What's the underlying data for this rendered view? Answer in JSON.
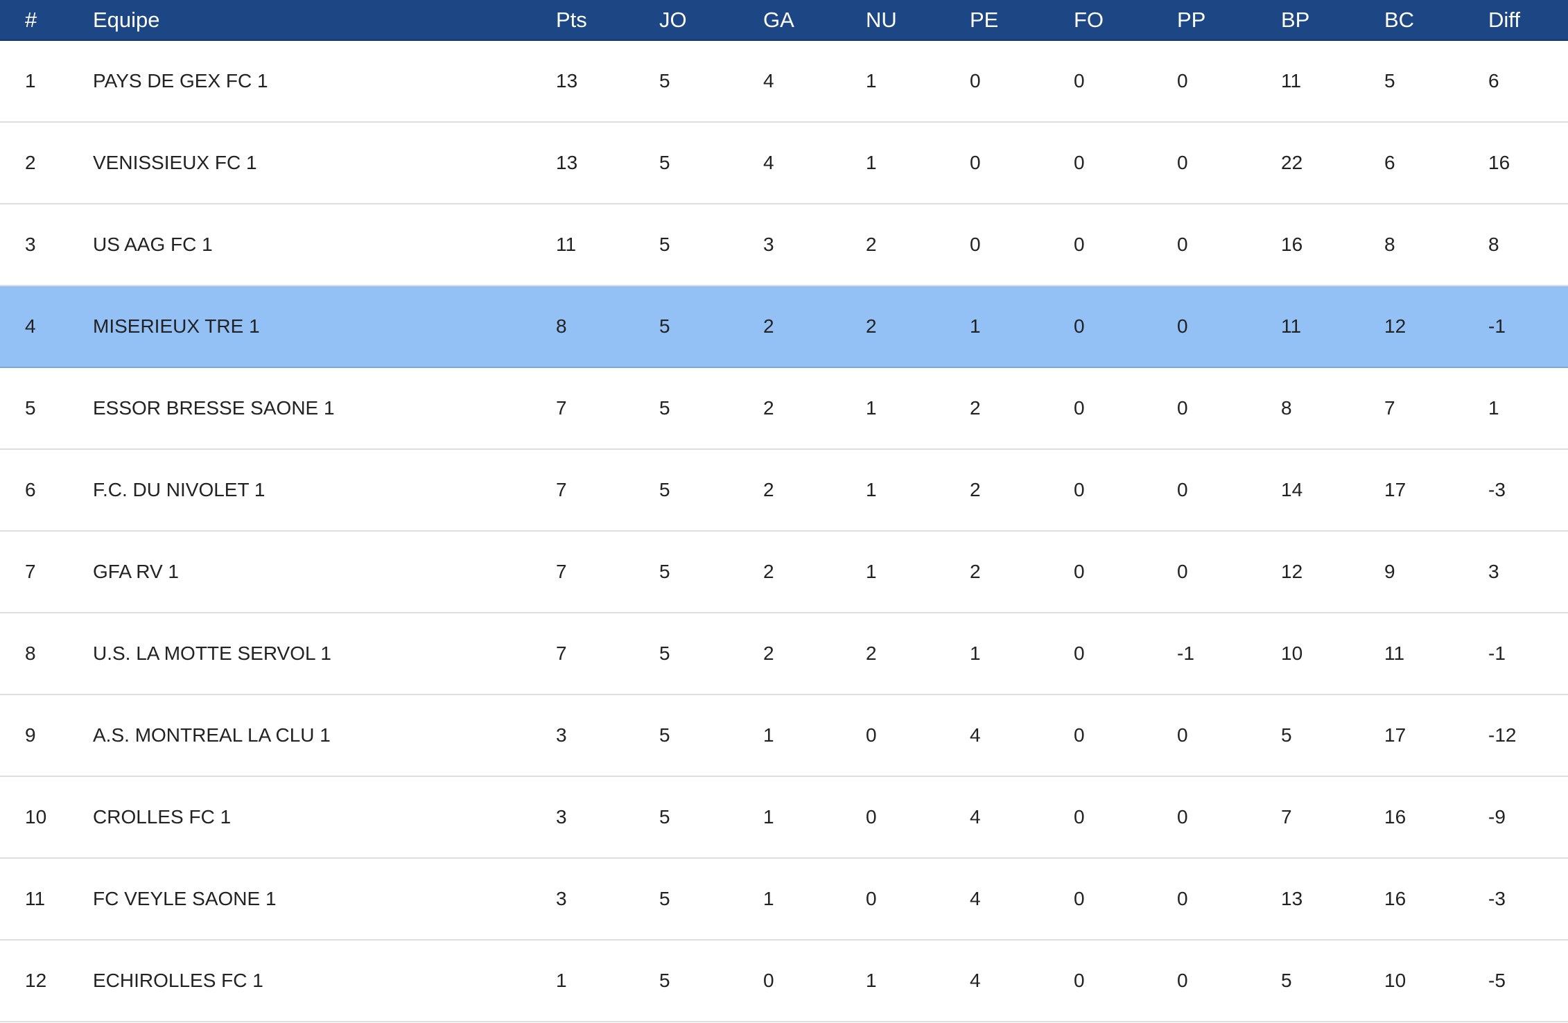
{
  "table": {
    "header": [
      "#",
      "Equipe",
      "Pts",
      "JO",
      "GA",
      "NU",
      "PE",
      "FO",
      "PP",
      "BP",
      "BC",
      "Diff"
    ],
    "rows": [
      [
        1,
        "PAYS DE GEX FC 1",
        13,
        5,
        4,
        1,
        0,
        0,
        0,
        11,
        5,
        6
      ],
      [
        2,
        "VENISSIEUX FC 1",
        13,
        5,
        4,
        1,
        0,
        0,
        0,
        22,
        6,
        16
      ],
      [
        3,
        "US AAG FC 1",
        11,
        5,
        3,
        2,
        0,
        0,
        0,
        16,
        8,
        8
      ],
      [
        4,
        "MISERIEUX TRE 1",
        8,
        5,
        2,
        2,
        1,
        0,
        0,
        11,
        12,
        -1
      ],
      [
        5,
        "ESSOR BRESSE SAONE 1",
        7,
        5,
        2,
        1,
        2,
        0,
        0,
        8,
        7,
        1
      ],
      [
        6,
        "F.C. DU NIVOLET 1",
        7,
        5,
        2,
        1,
        2,
        0,
        0,
        14,
        17,
        -3
      ],
      [
        7,
        "GFA RV 1",
        7,
        5,
        2,
        1,
        2,
        0,
        0,
        12,
        9,
        3
      ],
      [
        8,
        "U.S. LA MOTTE SERVOL 1",
        7,
        5,
        2,
        2,
        1,
        0,
        -1,
        10,
        11,
        -1
      ],
      [
        9,
        "A.S. MONTREAL LA CLU 1",
        3,
        5,
        1,
        0,
        4,
        0,
        0,
        5,
        17,
        -12
      ],
      [
        10,
        "CROLLES FC 1",
        3,
        5,
        1,
        0,
        4,
        0,
        0,
        7,
        16,
        -9
      ],
      [
        11,
        "FC VEYLE SAONE 1",
        3,
        5,
        1,
        0,
        4,
        0,
        0,
        13,
        16,
        -3
      ],
      [
        12,
        "ECHIROLLES FC 1",
        1,
        5,
        0,
        1,
        4,
        0,
        0,
        5,
        10,
        -5
      ]
    ]
  }
}
